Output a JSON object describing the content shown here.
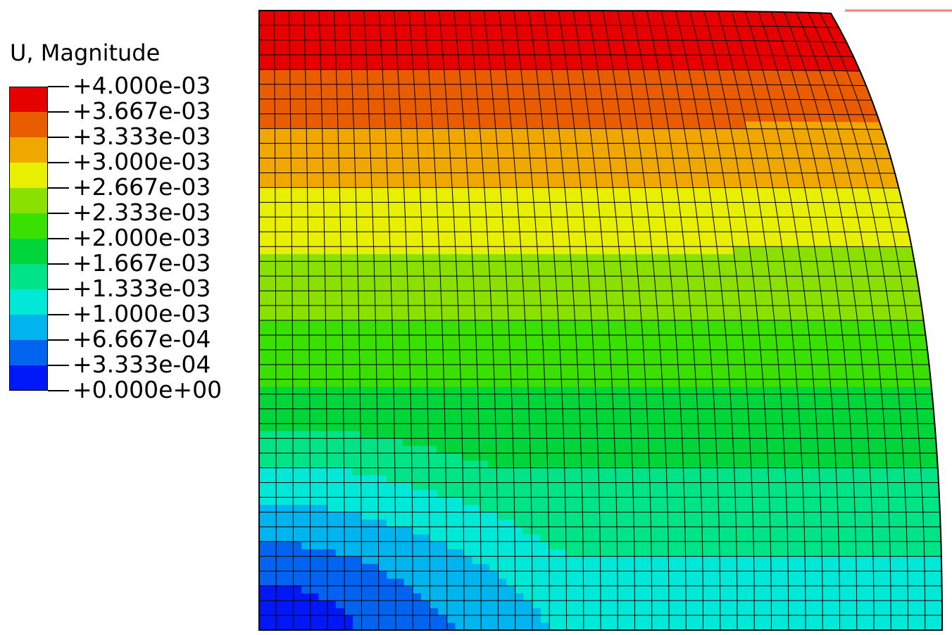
{
  "legend": {
    "title": "U, Magnitude",
    "levels": [
      {
        "label": "+4.000e-03",
        "color": "#e60000"
      },
      {
        "label": "+3.667e-03",
        "color": "#ea5c00"
      },
      {
        "label": "+3.333e-03",
        "color": "#f0a800"
      },
      {
        "label": "+3.000e-03",
        "color": "#e8ef00"
      },
      {
        "label": "+2.667e-03",
        "color": "#8ae000"
      },
      {
        "label": "+2.333e-03",
        "color": "#3ae000"
      },
      {
        "label": "+2.000e-03",
        "color": "#00d63a"
      },
      {
        "label": "+1.667e-03",
        "color": "#00e488"
      },
      {
        "label": "+1.333e-03",
        "color": "#00e8d8"
      },
      {
        "label": "+1.000e-03",
        "color": "#00b4f0"
      },
      {
        "label": "+6.667e-04",
        "color": "#0064f0"
      },
      {
        "label": "+3.333e-04",
        "color": "#0018f8"
      },
      {
        "label": "+0.000e+00",
        "color": ""
      }
    ]
  },
  "contour": {
    "field": "U, Magnitude",
    "max": 0.004,
    "min": 0.0,
    "max_location": "top-left",
    "min_location": "bottom-left",
    "mesh_color": "#000000",
    "boundary_line_color": "#f08080"
  }
}
